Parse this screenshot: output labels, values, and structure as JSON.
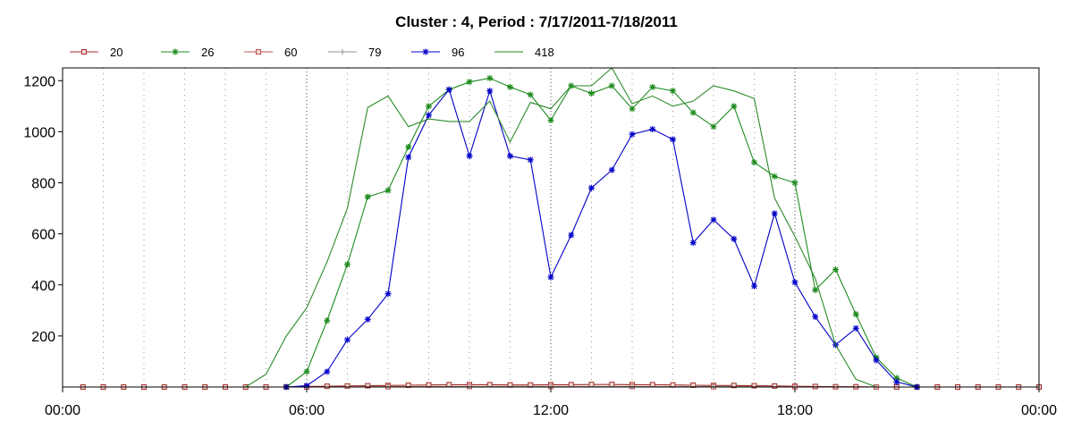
{
  "chart_data": {
    "type": "line",
    "title": "Cluster : 4, Period : 7/17/2011-7/18/2011",
    "xlabel": "",
    "ylabel": "",
    "x_tick_labels": [
      "00:00",
      "06:00",
      "12:00",
      "18:00",
      "00:00"
    ],
    "y_ticks": [
      200,
      400,
      600,
      800,
      1000,
      1200
    ],
    "xlim": [
      0,
      24
    ],
    "ylim": [
      0,
      1250
    ],
    "grid": true,
    "legend_position": "top-left",
    "series": [
      {
        "name": "20",
        "color": "#a0302a",
        "marker": "square",
        "x": [
          0.5,
          1.0,
          1.5,
          2.0,
          2.5,
          3.0,
          3.5,
          4.0,
          4.5,
          5.0,
          5.5,
          6.0,
          6.5,
          7.0,
          7.5,
          8.0,
          8.5,
          9.0,
          9.5,
          10.0,
          10.5,
          11.0,
          11.5,
          12.0,
          12.5,
          13.0,
          13.5,
          14.0,
          14.5,
          15.0,
          15.5,
          16.0,
          16.5,
          17.0,
          17.5,
          18.0,
          18.5,
          19.0,
          19.5,
          20.0,
          20.5,
          21.0,
          21.5,
          22.0,
          22.5,
          23.0,
          23.5,
          24.0
        ],
        "y": [
          0,
          0,
          0,
          0,
          0,
          0,
          0,
          0,
          0,
          0,
          0,
          2,
          3,
          4,
          5,
          6,
          7,
          8,
          9,
          9,
          9,
          8,
          8,
          9,
          9,
          10,
          10,
          9,
          9,
          8,
          7,
          6,
          6,
          5,
          4,
          3,
          2,
          1,
          1,
          0,
          0,
          0,
          0,
          0,
          0,
          0,
          0,
          0
        ]
      },
      {
        "name": "26",
        "color": "#1e8c1e",
        "marker": "star",
        "x": [
          5.5,
          6.0,
          6.5,
          7.0,
          7.5,
          8.0,
          8.5,
          9.0,
          9.5,
          10.0,
          10.5,
          11.0,
          11.5,
          12.0,
          12.5,
          13.0,
          13.5,
          14.0,
          14.5,
          15.0,
          15.5,
          16.0,
          16.5,
          17.0,
          17.5,
          18.0,
          18.5,
          19.0,
          19.5,
          20.0,
          20.5,
          21.0
        ],
        "y": [
          0,
          60,
          260,
          480,
          745,
          770,
          940,
          1100,
          1165,
          1195,
          1210,
          1175,
          1145,
          1045,
          1180,
          1150,
          1180,
          1090,
          1175,
          1160,
          1075,
          1020,
          1100,
          880,
          825,
          800,
          380,
          460,
          285,
          115,
          35,
          0
        ]
      },
      {
        "name": "60",
        "color": "#c0504d",
        "marker": "square",
        "x": [
          6.0,
          8.0,
          10.0,
          12.0,
          14.0,
          16.0,
          18.0,
          20.0
        ],
        "y": [
          0,
          1,
          2,
          2,
          2,
          1,
          1,
          0
        ]
      },
      {
        "name": "79",
        "color": "#909090",
        "marker": "plus",
        "x": [
          6.0,
          8.0,
          10.0,
          12.0,
          14.0,
          16.0,
          18.0,
          20.0
        ],
        "y": [
          0,
          0,
          1,
          1,
          1,
          1,
          0,
          0
        ]
      },
      {
        "name": "96",
        "color": "#0000c8",
        "marker": "star",
        "x": [
          5.5,
          6.0,
          6.5,
          7.0,
          7.5,
          8.0,
          8.5,
          9.0,
          9.5,
          10.0,
          10.5,
          11.0,
          11.5,
          12.0,
          12.5,
          13.0,
          13.5,
          14.0,
          14.5,
          15.0,
          15.5,
          16.0,
          16.5,
          17.0,
          17.5,
          18.0,
          18.5,
          19.0,
          19.5,
          20.0,
          20.5,
          21.0
        ],
        "y": [
          0,
          5,
          60,
          185,
          265,
          365,
          900,
          1065,
          1165,
          905,
          1160,
          905,
          890,
          430,
          595,
          780,
          850,
          990,
          1010,
          970,
          565,
          655,
          580,
          395,
          680,
          410,
          275,
          165,
          230,
          105,
          20,
          0
        ]
      },
      {
        "name": "418",
        "color": "#2a8a2a",
        "marker": "none",
        "x": [
          4.5,
          5.0,
          5.5,
          6.0,
          6.5,
          7.0,
          7.5,
          8.0,
          8.5,
          9.0,
          9.5,
          10.0,
          10.5,
          11.0,
          11.5,
          12.0,
          12.5,
          13.0,
          13.5,
          14.0,
          14.5,
          15.0,
          15.5,
          16.0,
          16.5,
          17.0,
          17.5,
          18.0,
          18.5,
          19.0,
          19.5,
          20.0,
          20.5,
          21.0
        ],
        "y": [
          0,
          50,
          200,
          310,
          490,
          700,
          1095,
          1140,
          1020,
          1050,
          1040,
          1040,
          1120,
          960,
          1115,
          1090,
          1180,
          1180,
          1250,
          1110,
          1140,
          1100,
          1120,
          1180,
          1160,
          1130,
          740,
          590,
          425,
          165,
          30,
          0,
          0,
          0
        ]
      }
    ]
  }
}
